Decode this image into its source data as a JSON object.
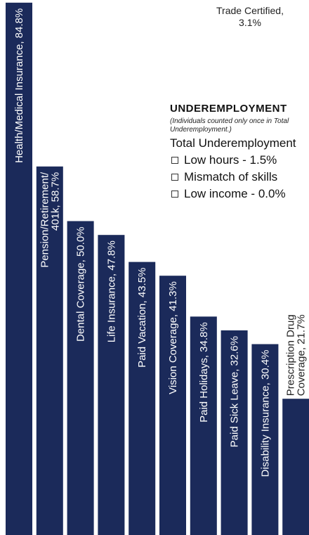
{
  "chart_data": {
    "type": "bar",
    "categories": [
      "Health/Medical Insurance",
      "Pension/Retirement/ 401k",
      "Dental Coverage",
      "Life Insurance",
      "Paid Vacation",
      "Vision Coverage",
      "Paid Holidays",
      "Paid Sick Leave",
      "Disability Insurance",
      "Prescription Drug Coverage",
      "Trade Certified"
    ],
    "values": [
      84.8,
      58.7,
      50.0,
      47.8,
      43.5,
      41.3,
      34.8,
      32.6,
      30.4,
      21.7,
      3.1
    ],
    "data_labels": [
      "Health/Medical Insurance, 84.8%",
      "Pension/Retirement/ 401k, 58.7%",
      "Dental Coverage, 50.0%",
      "Life Insurance, 47.8%",
      "Paid Vacation, 43.5%",
      "Vision Coverage, 41.3%",
      "Paid Holidays, 34.8%",
      "Paid Sick Leave, 32.6%",
      "Disability Insurance, 30.4%",
      "Prescription Drug Coverage, 21.7%",
      "Trade Certified, 3.1%"
    ],
    "label_lines": [
      [
        "Health/Medical Insurance, 84.8%"
      ],
      [
        "Pension/Retirement/",
        "401k, 58.7%"
      ],
      [
        "Dental Coverage, 50.0%"
      ],
      [
        "Life Insurance, 47.8%"
      ],
      [
        "Paid Vacation, 43.5%"
      ],
      [
        "Vision Coverage, 41.3%"
      ],
      [
        "Paid Holidays, 34.8%"
      ],
      [
        "Paid Sick Leave, 32.6%"
      ],
      [
        "Disability Insurance, 30.4%"
      ],
      [
        "Prescription Drug",
        "Coverage, 21.7%"
      ]
    ],
    "ylim": [
      0,
      85
    ],
    "bar_color": "#1b2a5a",
    "grid": false,
    "title": "",
    "xlabel": "",
    "ylabel": ""
  },
  "trade_label": {
    "line1": "Trade Certified,",
    "line2": "3.1%"
  },
  "underemployment": {
    "title": "UNDEREMPLOYMENT",
    "note": "(Individuals counted only once in Total Underemployment.)",
    "total": "Total Underemployment",
    "items": [
      "Low hours - 1.5%",
      "Mismatch of skills",
      "Low income - 0.0%"
    ]
  }
}
